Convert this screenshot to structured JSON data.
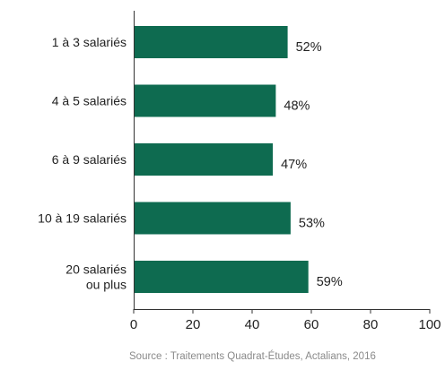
{
  "chart_data": {
    "type": "bar",
    "orientation": "horizontal",
    "categories": [
      [
        "1 à 3 salariés"
      ],
      [
        "4 à 5 salariés"
      ],
      [
        "6 à 9 salariés"
      ],
      [
        "10 à 19 salariés"
      ],
      [
        "20 salariés",
        "ou plus"
      ]
    ],
    "values": [
      52,
      48,
      47,
      53,
      59
    ],
    "value_labels": [
      "52%",
      "48%",
      "47%",
      "53%",
      "59%"
    ],
    "xlim": [
      0,
      100
    ],
    "xticks": [
      0,
      20,
      40,
      60,
      80,
      100
    ],
    "grid": false,
    "bar_color": "#0e6b50",
    "source": "Source : Traitements Quadrat-Études, Actalians, 2016"
  }
}
